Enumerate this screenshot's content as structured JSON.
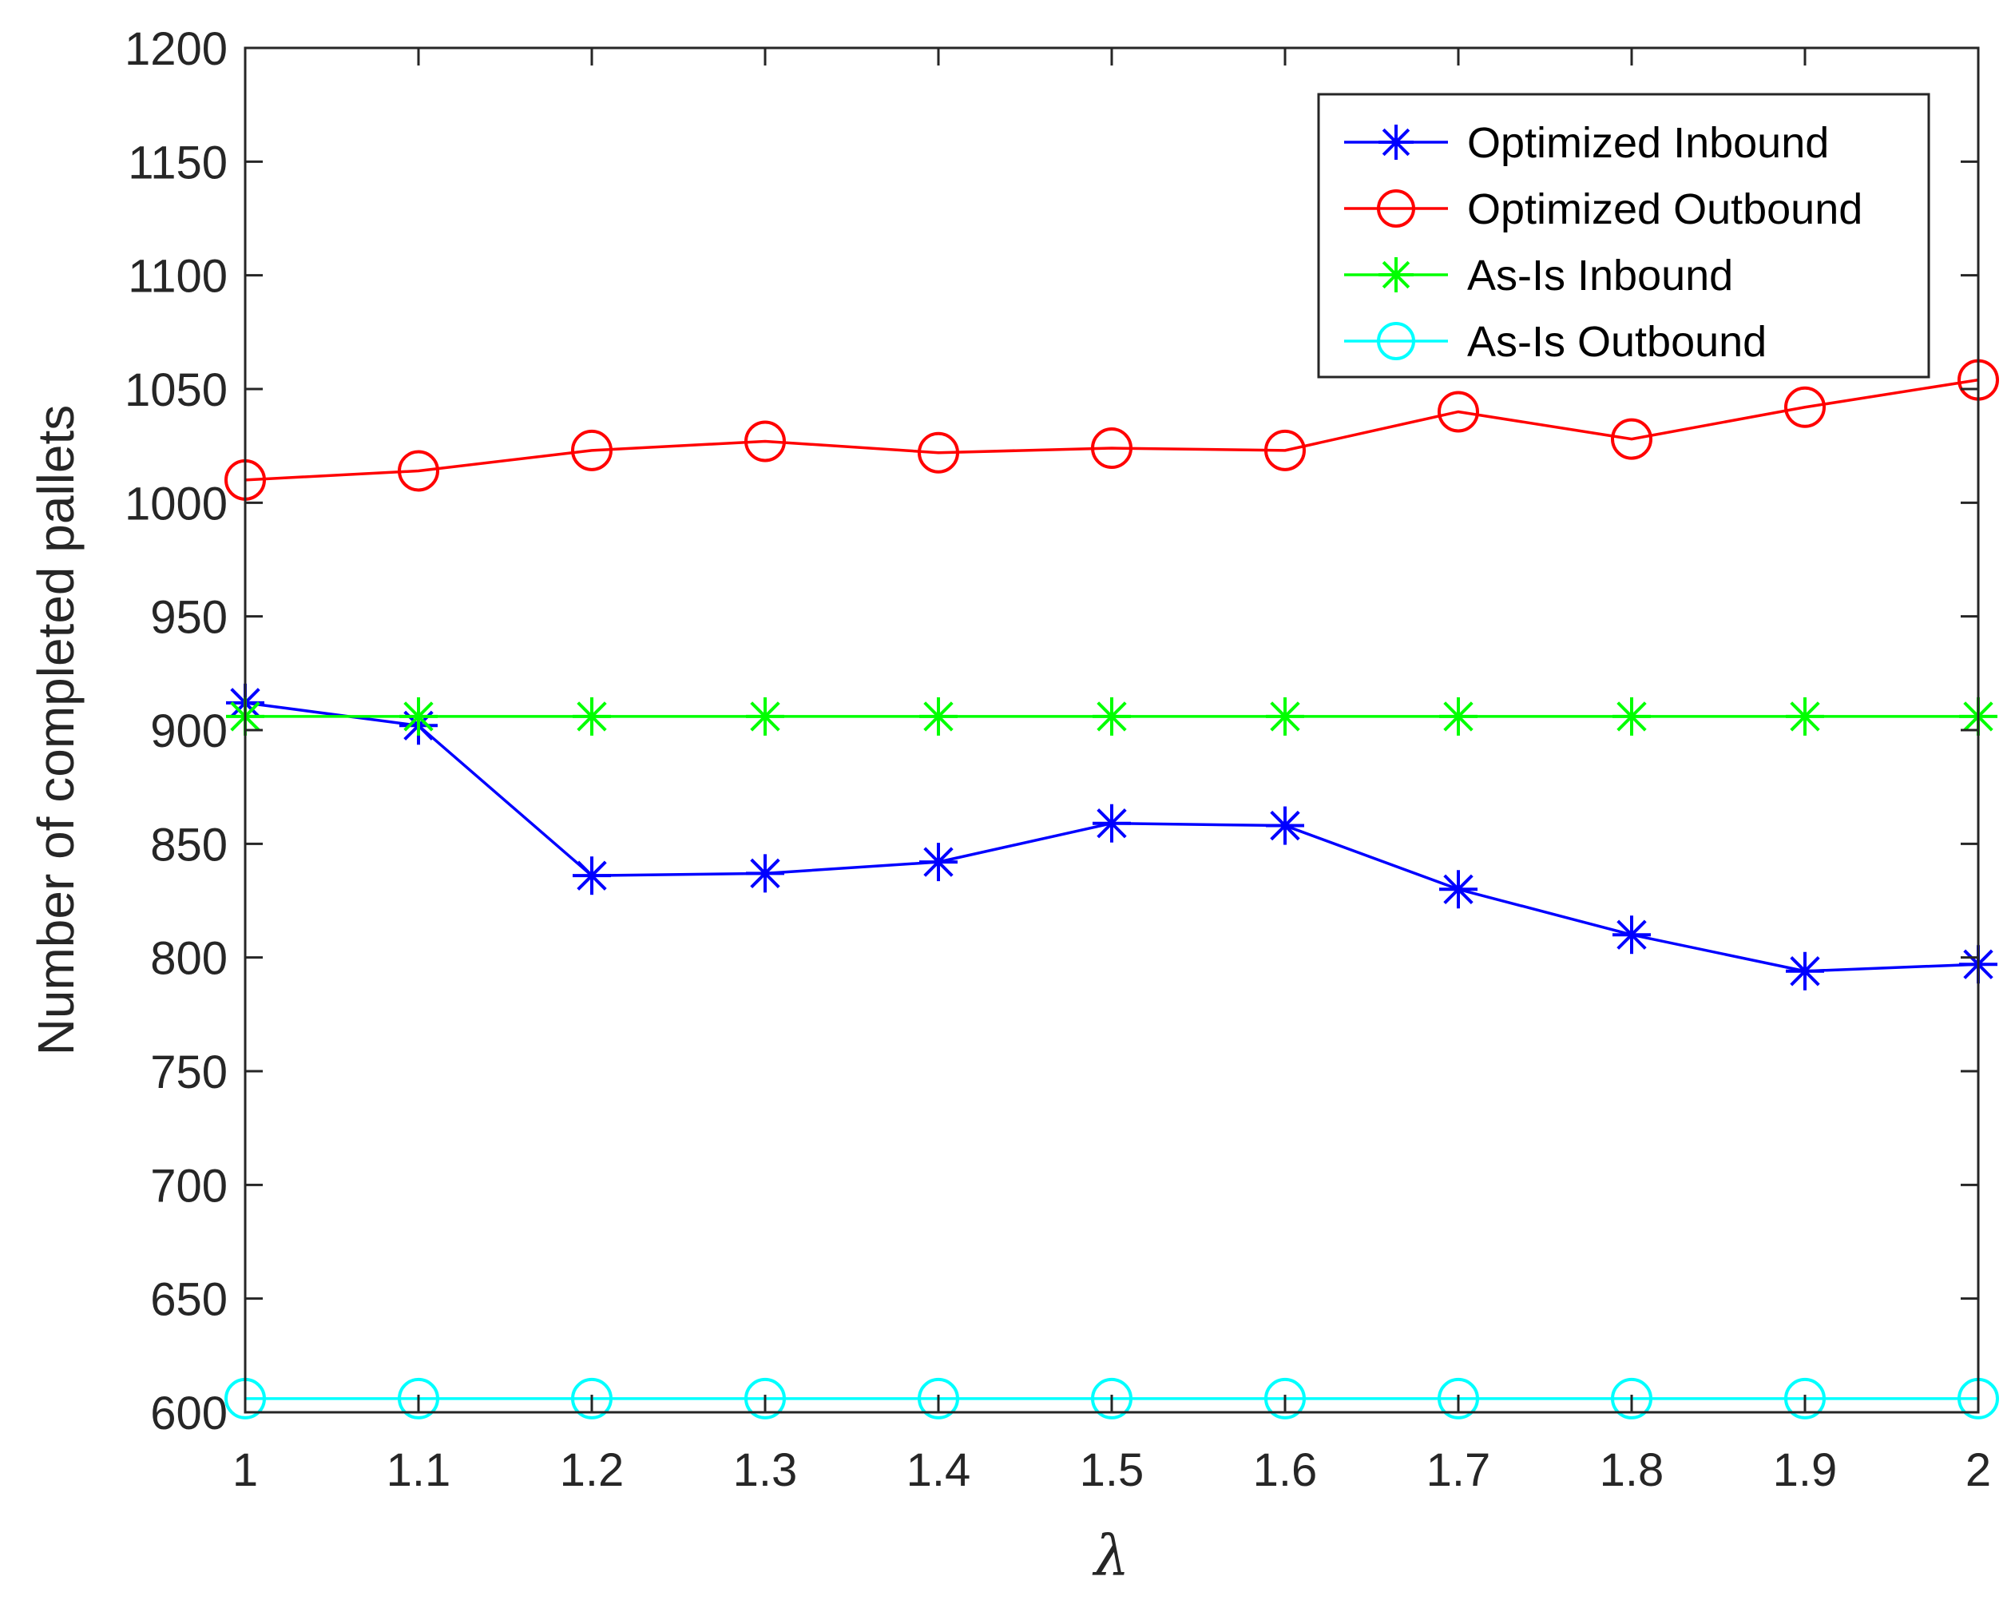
{
  "chart_data": {
    "type": "line",
    "title": "",
    "xlabel": "λ",
    "ylabel": "Number of completed pallets",
    "x": [
      1,
      1.1,
      1.2,
      1.3,
      1.4,
      1.5,
      1.6,
      1.7,
      1.8,
      1.9,
      2
    ],
    "xlim": [
      1,
      2
    ],
    "ylim": [
      600,
      1200
    ],
    "xticks": [
      1,
      1.1,
      1.2,
      1.3,
      1.4,
      1.5,
      1.6,
      1.7,
      1.8,
      1.9,
      2
    ],
    "xtick_labels": [
      "1",
      "1.1",
      "1.2",
      "1.3",
      "1.4",
      "1.5",
      "1.6",
      "1.7",
      "1.8",
      "1.9",
      "2"
    ],
    "yticks": [
      600,
      650,
      700,
      750,
      800,
      850,
      900,
      950,
      1000,
      1050,
      1100,
      1150,
      1200
    ],
    "ytick_labels": [
      "600",
      "650",
      "700",
      "750",
      "800",
      "850",
      "900",
      "950",
      "1000",
      "1050",
      "1100",
      "1150",
      "1200"
    ],
    "grid": false,
    "legend_position": "top-right",
    "series": [
      {
        "name": "Optimized Inbound",
        "color": "#0000ff",
        "marker": "asterisk",
        "values": [
          912,
          902,
          836,
          837,
          842,
          859,
          858,
          830,
          810,
          794,
          797
        ]
      },
      {
        "name": "Optimized Outbound",
        "color": "#ff0000",
        "marker": "circle",
        "values": [
          1010,
          1014,
          1023,
          1027,
          1022,
          1024,
          1023,
          1040,
          1028,
          1042,
          1054
        ]
      },
      {
        "name": "As-Is Inbound",
        "color": "#00ff00",
        "marker": "asterisk",
        "values": [
          906,
          906,
          906,
          906,
          906,
          906,
          906,
          906,
          906,
          906,
          906
        ]
      },
      {
        "name": "As-Is Outbound",
        "color": "#00ffff",
        "marker": "circle",
        "values": [
          606,
          606,
          606,
          606,
          606,
          606,
          606,
          606,
          606,
          606,
          606
        ]
      }
    ]
  }
}
